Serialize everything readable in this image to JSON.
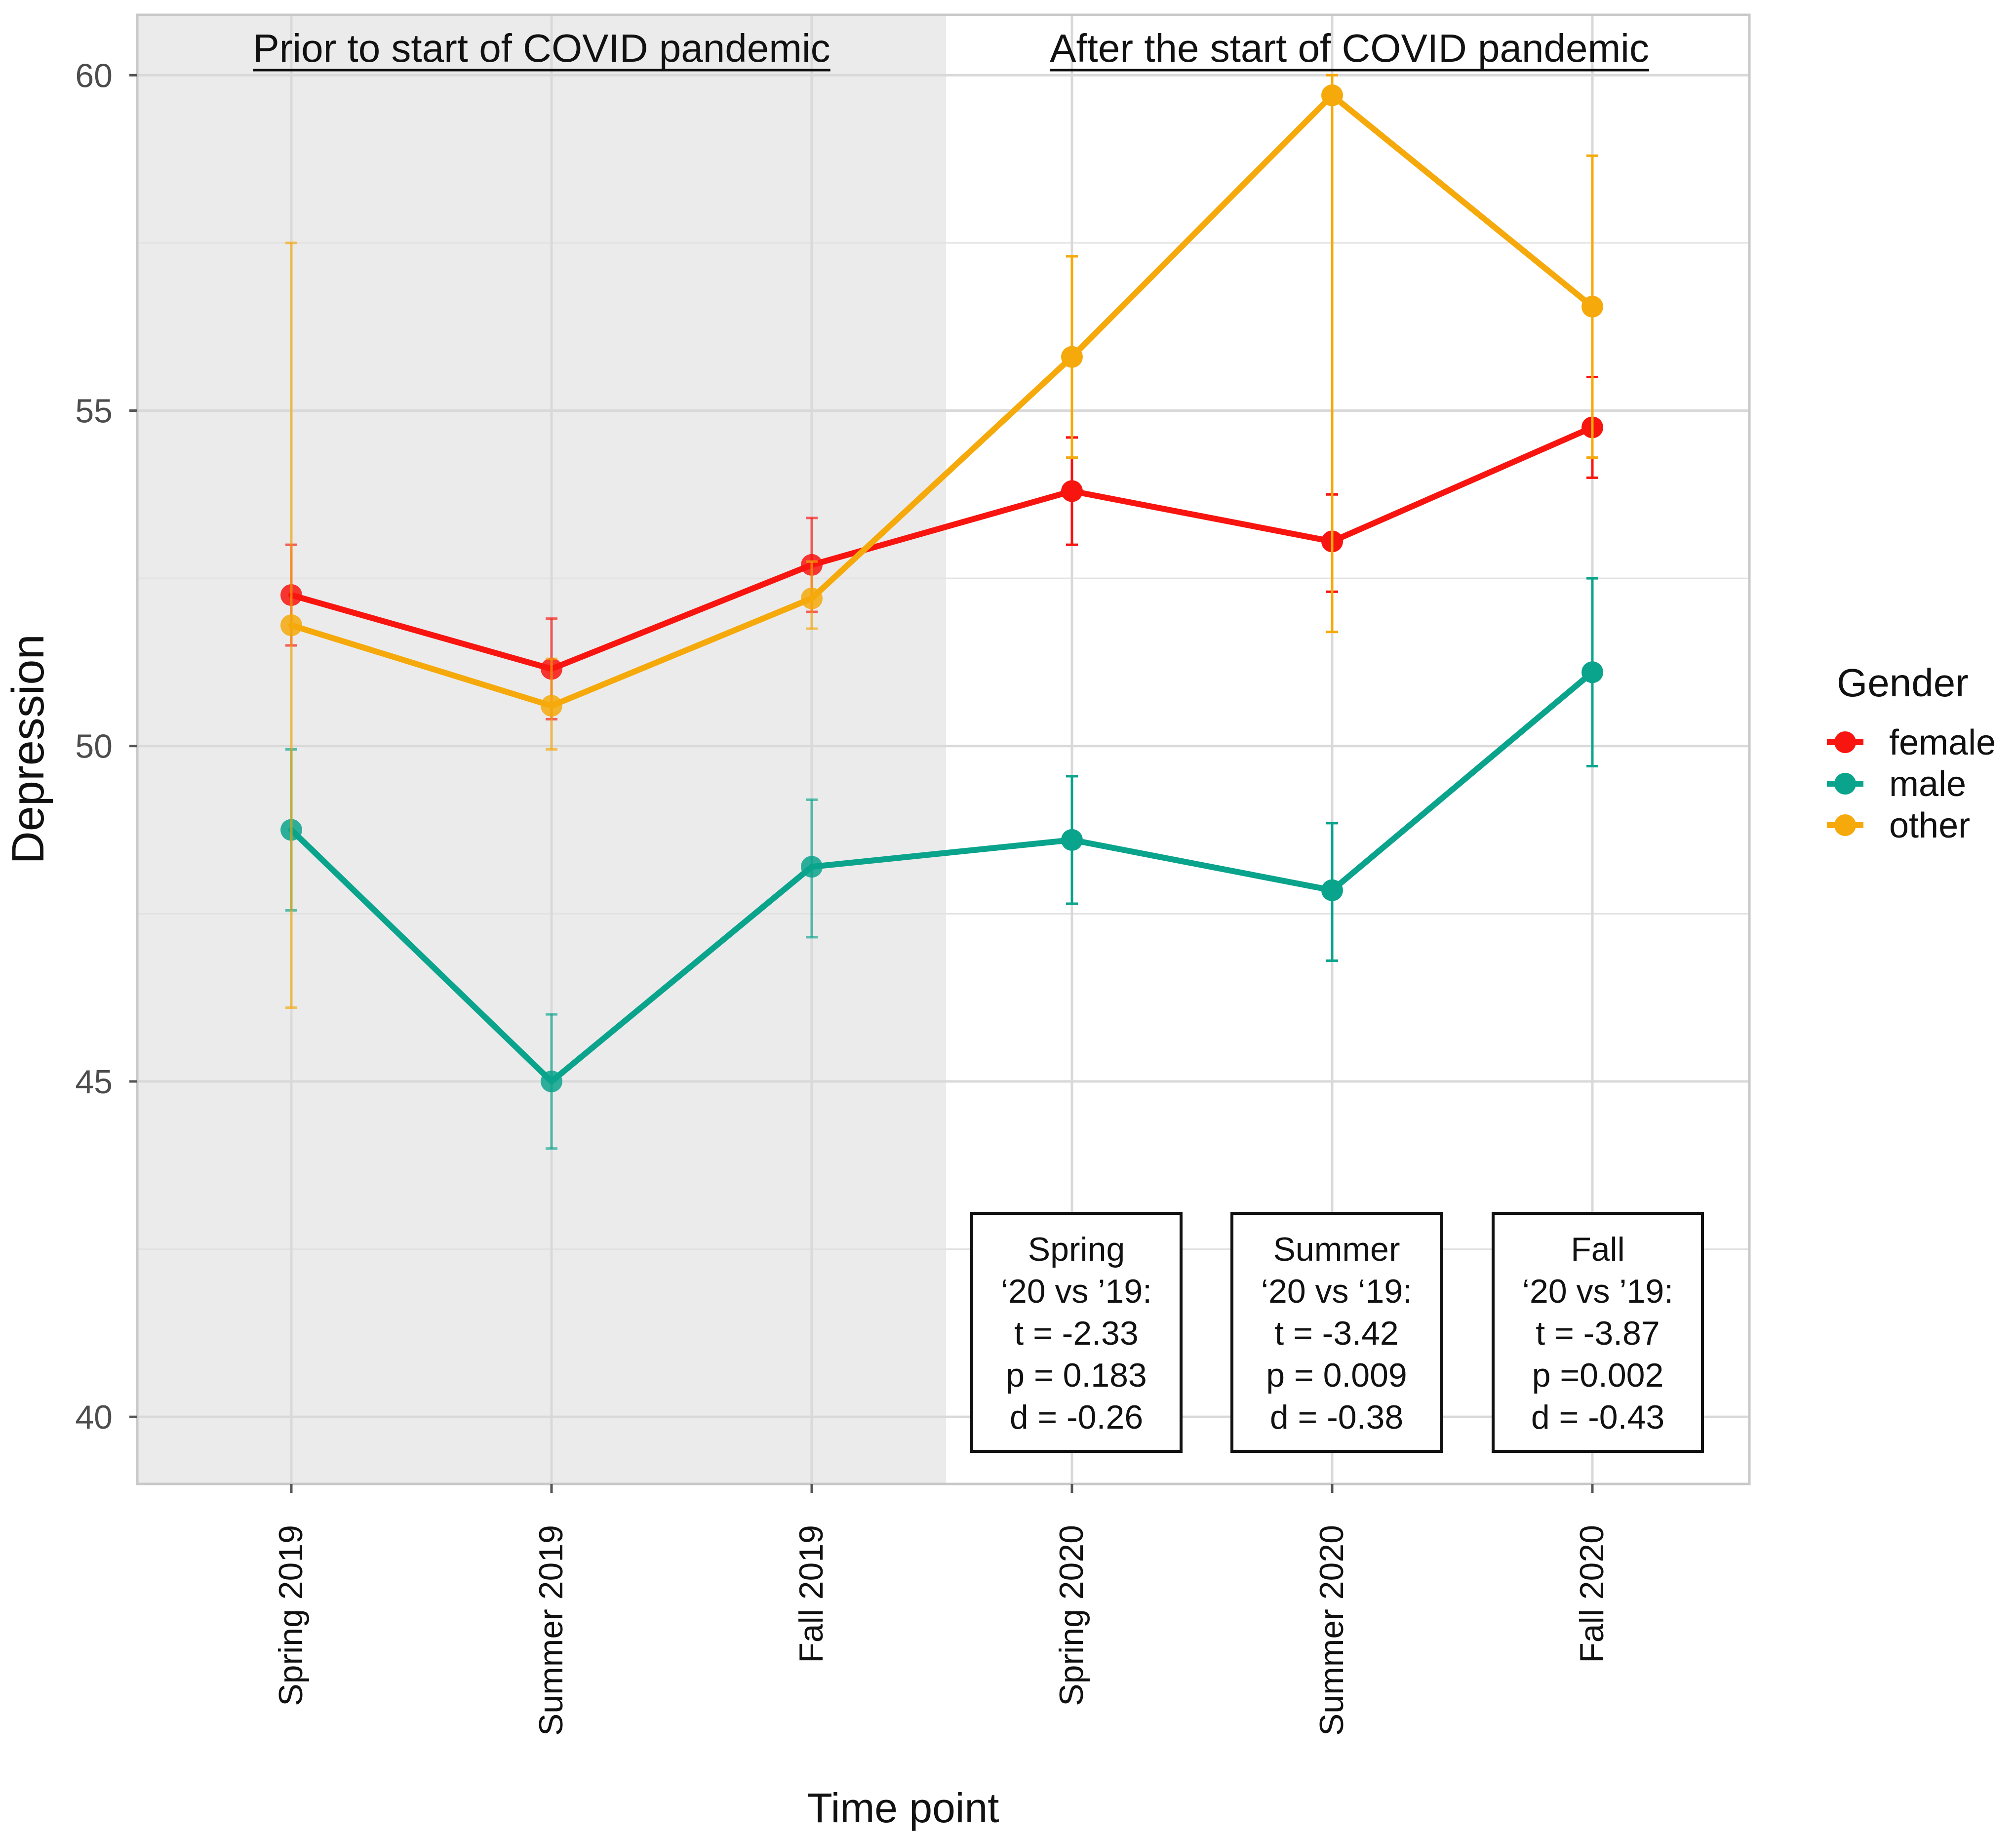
{
  "chart_data": {
    "type": "line",
    "title": "",
    "xlabel": "Time point",
    "ylabel": "Depression",
    "categories": [
      "Spring 2019",
      "Summer 2019",
      "Fall 2019",
      "Spring 2020",
      "Summer 2020",
      "Fall 2020"
    ],
    "ylim": [
      39,
      60.9
    ],
    "yticks": [
      40,
      45,
      50,
      55,
      60
    ],
    "grid": true,
    "legend": {
      "title": "Gender",
      "position": "right"
    },
    "series": [
      {
        "name": "female",
        "color": "#f8140f",
        "values": [
          52.25,
          51.15,
          52.7,
          53.8,
          53.05,
          54.75
        ],
        "error_low": [
          51.5,
          50.4,
          52.0,
          53.0,
          52.3,
          54.0
        ],
        "error_high": [
          53.0,
          51.9,
          53.4,
          54.6,
          53.75,
          55.5
        ]
      },
      {
        "name": "male",
        "color": "#0aa38c",
        "values": [
          48.75,
          45.0,
          48.2,
          48.6,
          47.85,
          51.1
        ],
        "error_low": [
          47.55,
          44.0,
          47.15,
          47.65,
          46.8,
          49.7
        ],
        "error_high": [
          49.95,
          46.0,
          49.2,
          49.55,
          48.85,
          52.5
        ]
      },
      {
        "name": "other",
        "color": "#f5a90a",
        "values": [
          51.8,
          50.6,
          52.2,
          55.8,
          59.7,
          56.55
        ],
        "error_low": [
          46.1,
          49.95,
          51.75,
          54.3,
          51.7,
          54.3
        ],
        "error_high": [
          57.5,
          51.3,
          52.75,
          57.3,
          60.0,
          58.8
        ]
      }
    ],
    "regions": [
      {
        "label": "Prior to start of COVID pandemic",
        "shaded": true,
        "color": "#ebebeb"
      },
      {
        "label": "After the start of COVID pandemic",
        "shaded": false
      }
    ],
    "annotations": [
      {
        "lines": [
          "Spring",
          "‘20 vs ’19:",
          "t = -2.33",
          "p = 0.183",
          "d = -0.26"
        ]
      },
      {
        "lines": [
          "Summer",
          "‘20 vs ‘19:",
          "t = -3.42",
          "p = 0.009",
          "d = -0.38"
        ]
      },
      {
        "lines": [
          "Fall",
          "‘20 vs ’19:",
          "t = -3.87",
          "p =0.002",
          "d = -0.43"
        ]
      }
    ]
  }
}
